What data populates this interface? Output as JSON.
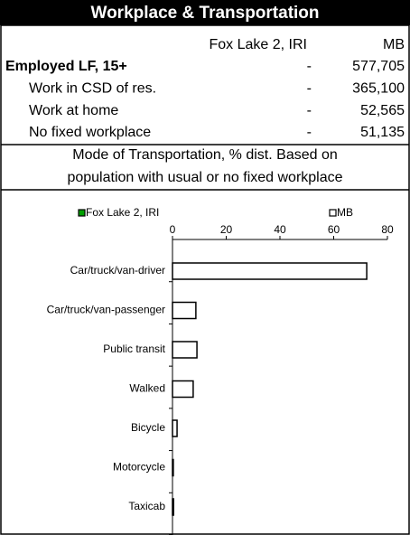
{
  "header": {
    "title": "Workplace & Transportation"
  },
  "table": {
    "columns": [
      "Fox Lake 2, IRI",
      "MB"
    ],
    "rows": [
      [
        "Employed LF, 15+",
        "-",
        "577,705"
      ],
      [
        "Work in CSD of res.",
        "-",
        "365,100"
      ],
      [
        "Work at home",
        "-",
        "52,565"
      ],
      [
        "No fixed workplace",
        "-",
        "51,135"
      ]
    ]
  },
  "section": {
    "lines": [
      "Mode of Transportation, % dist. Based on",
      "population with usual or no fixed workplace"
    ]
  },
  "chart_data": {
    "type": "hbar",
    "categories": [
      "Car/truck/van-driver",
      "Car/truck/van-passenger",
      "Public transit",
      "Walked",
      "Bicycle",
      "Motorcycle",
      "Taxicab"
    ],
    "series": [
      {
        "name": "Fox Lake 2, IRI",
        "color": "#00a000",
        "values": [
          null,
          null,
          null,
          null,
          null,
          null,
          null
        ]
      },
      {
        "name": "MB",
        "color": "#ffffff",
        "values": [
          72.3,
          8.7,
          9.1,
          7.7,
          1.7,
          0.3,
          0.4
        ]
      }
    ],
    "xlim": [
      0,
      80
    ],
    "xticks": [
      0,
      20,
      40,
      60,
      80
    ]
  }
}
